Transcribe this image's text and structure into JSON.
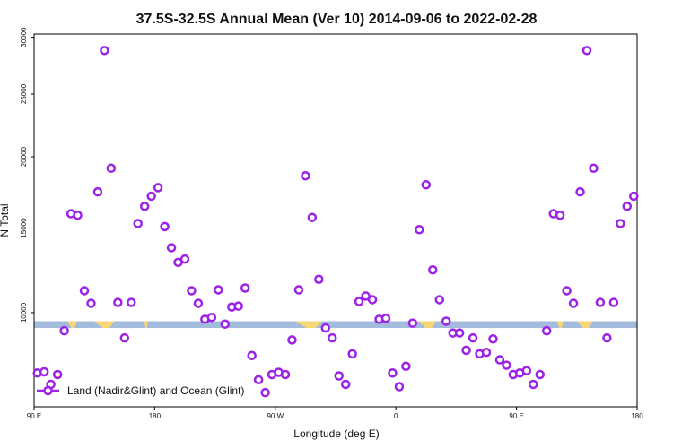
{
  "chart_data": {
    "type": "scatter",
    "title": "37.5S-32.5S Annual Mean (Ver 10)   2014-09-06 to 2022-02-28",
    "xlabel": "Longitude (deg E)",
    "ylabel": "N Total",
    "xlim": [
      90,
      540
    ],
    "ylim": [
      5620,
      30300
    ],
    "y_scale": "sqrt",
    "grid": false,
    "legend_position": "bottom-left",
    "x_ticks": [
      {
        "value": 90,
        "label": "90 E"
      },
      {
        "value": 180,
        "label": "180"
      },
      {
        "value": 270,
        "label": "90 W"
      },
      {
        "value": 360,
        "label": "0"
      },
      {
        "value": 450,
        "label": "90 E"
      },
      {
        "value": 540,
        "label": "180"
      }
    ],
    "y_ticks": [
      {
        "value": 10000,
        "label": "10000"
      },
      {
        "value": 15000,
        "label": "15000"
      },
      {
        "value": 20000,
        "label": "20000"
      },
      {
        "value": 25000,
        "label": "25000"
      },
      {
        "value": 30000,
        "label": "30000"
      }
    ],
    "series": [
      {
        "name": "Land (Nadir&Glint) and Ocean (Glint)",
        "color": "#9b22e6",
        "marker": "ring",
        "points": [
          [
            92.5,
            7050
          ],
          [
            97.5,
            7100
          ],
          [
            102.5,
            6550
          ],
          [
            107.5,
            6980
          ],
          [
            112.5,
            9060
          ],
          [
            117.5,
            15950
          ],
          [
            122.5,
            15850
          ],
          [
            127.5,
            11200
          ],
          [
            132.5,
            10500
          ],
          [
            137.5,
            17450
          ],
          [
            142.5,
            28800
          ],
          [
            147.5,
            19150
          ],
          [
            152.5,
            10550
          ],
          [
            157.5,
            8700
          ],
          [
            162.5,
            10550
          ],
          [
            167.5,
            15300
          ],
          [
            172.5,
            16450
          ],
          [
            177.5,
            17150
          ],
          [
            182.5,
            17750
          ],
          [
            187.5,
            15100
          ],
          [
            192.5,
            13750
          ],
          [
            197.5,
            12850
          ],
          [
            202.5,
            13050
          ],
          [
            207.5,
            11200
          ],
          [
            212.5,
            10500
          ],
          [
            217.5,
            9650
          ],
          [
            222.5,
            9750
          ],
          [
            227.5,
            11250
          ],
          [
            232.5,
            9400
          ],
          [
            237.5,
            10300
          ],
          [
            242.5,
            10350
          ],
          [
            247.5,
            11350
          ],
          [
            252.5,
            7850
          ],
          [
            257.5,
            6750
          ],
          [
            262.5,
            6200
          ],
          [
            267.5,
            6980
          ],
          [
            272.5,
            7080
          ],
          [
            277.5,
            6980
          ],
          [
            282.5,
            8600
          ],
          [
            287.5,
            11250
          ],
          [
            292.5,
            18600
          ],
          [
            297.5,
            15700
          ],
          [
            302.5,
            11850
          ],
          [
            307.5,
            9200
          ],
          [
            312.5,
            8700
          ],
          [
            317.5,
            6920
          ],
          [
            322.5,
            6550
          ],
          [
            327.5,
            7930
          ],
          [
            332.5,
            10600
          ],
          [
            337.5,
            10900
          ],
          [
            342.5,
            10700
          ],
          [
            347.5,
            9650
          ],
          [
            352.5,
            9700
          ],
          [
            357.5,
            7050
          ],
          [
            362.5,
            6450
          ],
          [
            367.5,
            7350
          ],
          [
            372.5,
            9450
          ],
          [
            377.5,
            14900
          ],
          [
            382.5,
            17950
          ],
          [
            387.5,
            12400
          ],
          [
            392.5,
            10700
          ],
          [
            397.5,
            9550
          ],
          [
            402.5,
            8950
          ],
          [
            407.5,
            8950
          ],
          [
            412.5,
            8100
          ],
          [
            417.5,
            8700
          ],
          [
            422.5,
            7930
          ],
          [
            427.5,
            8000
          ],
          [
            432.5,
            8650
          ],
          [
            437.5,
            7650
          ],
          [
            442.5,
            7400
          ],
          [
            447.5,
            6980
          ],
          [
            452.5,
            7050
          ],
          [
            457.5,
            7150
          ],
          [
            462.5,
            6550
          ],
          [
            467.5,
            6980
          ],
          [
            472.5,
            9060
          ],
          [
            477.5,
            15950
          ],
          [
            482.5,
            15850
          ],
          [
            487.5,
            11200
          ],
          [
            492.5,
            10500
          ],
          [
            497.5,
            17450
          ],
          [
            502.5,
            28800
          ],
          [
            507.5,
            19150
          ],
          [
            512.5,
            10550
          ],
          [
            517.5,
            8700
          ],
          [
            522.5,
            10550
          ],
          [
            527.5,
            15300
          ],
          [
            532.5,
            16450
          ],
          [
            537.5,
            17150
          ]
        ]
      }
    ],
    "map_band": {
      "description": "world land/ocean strip at 37.5S-32.5S",
      "ocean_color": "#a3bcdd",
      "land_color": "#f7d675",
      "y_range": [
        9200,
        9550
      ],
      "land_segments": [
        [
          115,
          122
        ],
        [
          135,
          150
        ],
        [
          172,
          175
        ],
        [
          285,
          305
        ],
        [
          377,
          390
        ],
        [
          480,
          485
        ],
        [
          495,
          507
        ]
      ]
    }
  }
}
